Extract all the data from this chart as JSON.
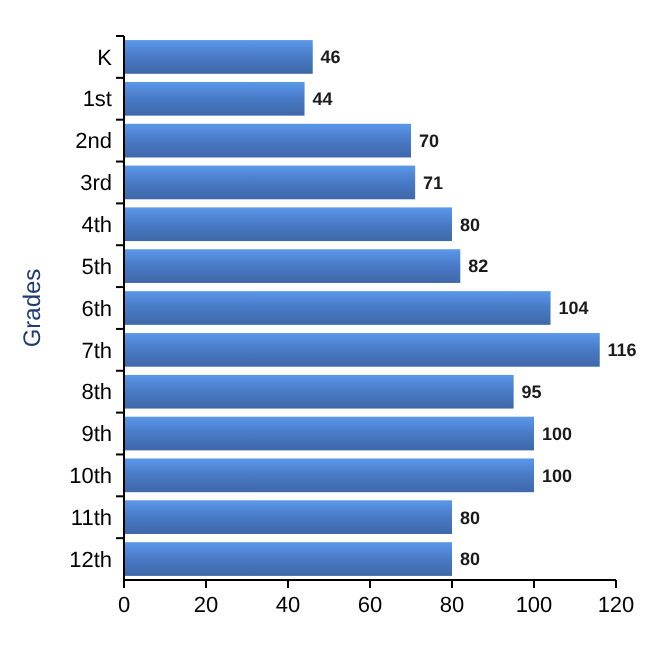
{
  "chart_data": {
    "type": "bar",
    "orientation": "horizontal",
    "ylabel": "Grades",
    "categories": [
      "K",
      "1st",
      "2nd",
      "3rd",
      "4th",
      "5th",
      "6th",
      "7th",
      "8th",
      "9th",
      "10th",
      "11th",
      "12th"
    ],
    "values": [
      46,
      44,
      70,
      71,
      80,
      82,
      104,
      116,
      95,
      100,
      100,
      80,
      80
    ],
    "color": "#4a7cc9",
    "xlim": [
      0,
      120
    ],
    "xticks": [
      0,
      20,
      40,
      60,
      80,
      100,
      120
    ],
    "data_labels": true
  }
}
